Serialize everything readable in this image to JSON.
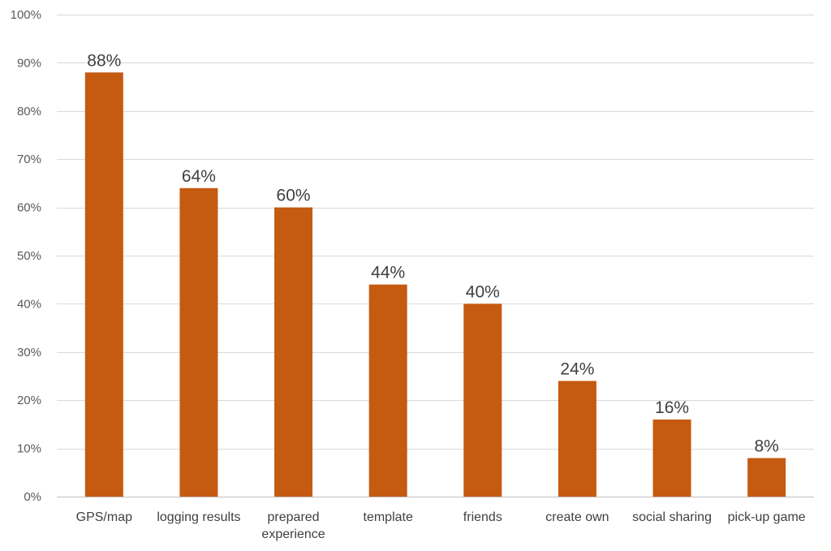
{
  "chart_data": {
    "type": "bar",
    "categories": [
      "GPS/map",
      "logging results",
      "prepared experience",
      "template",
      "friends",
      "create own",
      "social sharing",
      "pick-up game"
    ],
    "category_lines": [
      [
        "GPS/map"
      ],
      [
        "logging results"
      ],
      [
        "prepared",
        "experience"
      ],
      [
        "template"
      ],
      [
        "friends"
      ],
      [
        "create own"
      ],
      [
        "social sharing"
      ],
      [
        "pick-up game"
      ]
    ],
    "values": [
      88,
      64,
      60,
      44,
      40,
      24,
      16,
      8
    ],
    "data_labels": [
      "88%",
      "64%",
      "60%",
      "44%",
      "40%",
      "24%",
      "16%",
      "8%"
    ],
    "y_ticks": [
      0,
      10,
      20,
      30,
      40,
      50,
      60,
      70,
      80,
      90,
      100
    ],
    "y_tick_labels": [
      "0%",
      "10%",
      "20%",
      "30%",
      "40%",
      "50%",
      "60%",
      "70%",
      "80%",
      "90%",
      "100%"
    ],
    "ylim": [
      0,
      100
    ],
    "grid": true,
    "legend": "none",
    "bar_color": "#C55A11",
    "title": "",
    "xlabel": "",
    "ylabel": ""
  }
}
